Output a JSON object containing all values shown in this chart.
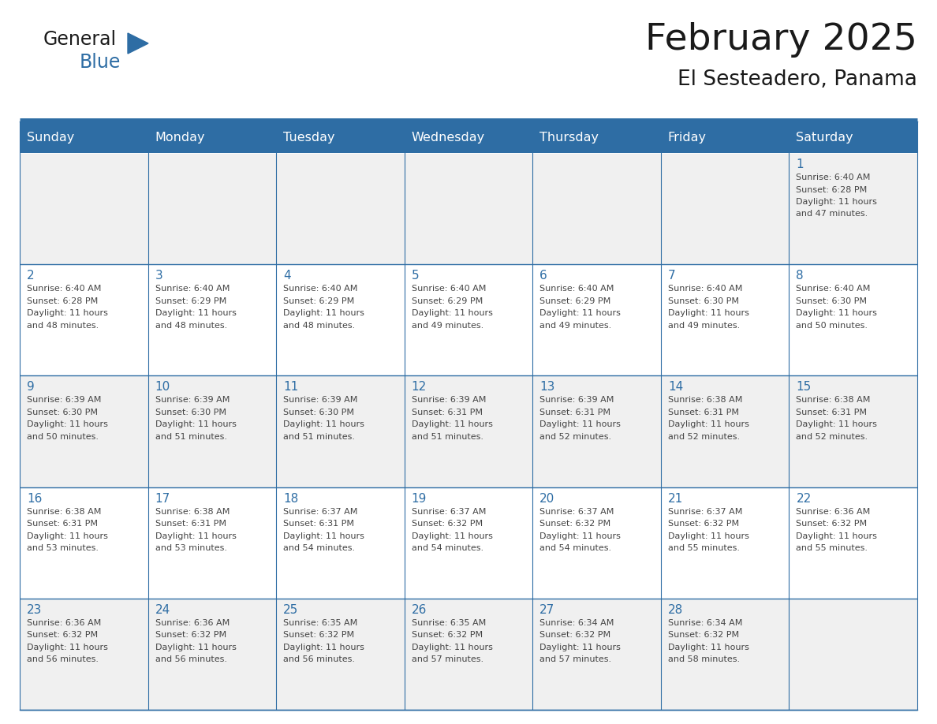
{
  "title": "February 2025",
  "subtitle": "El Sesteadero, Panama",
  "days_of_week": [
    "Sunday",
    "Monday",
    "Tuesday",
    "Wednesday",
    "Thursday",
    "Friday",
    "Saturday"
  ],
  "header_bg": "#2E6DA4",
  "header_text": "#FFFFFF",
  "cell_bg_light": "#F0F0F0",
  "cell_bg_white": "#FFFFFF",
  "border_color": "#2E6DA4",
  "day_number_color": "#2E6DA4",
  "text_color": "#444444",
  "title_color": "#1a1a1a",
  "calendar_data": [
    [
      null,
      null,
      null,
      null,
      null,
      null,
      {
        "day": 1,
        "sunrise": "6:40 AM",
        "sunset": "6:28 PM",
        "daylight": "11 hours and 47 minutes."
      }
    ],
    [
      {
        "day": 2,
        "sunrise": "6:40 AM",
        "sunset": "6:28 PM",
        "daylight": "11 hours and 48 minutes."
      },
      {
        "day": 3,
        "sunrise": "6:40 AM",
        "sunset": "6:29 PM",
        "daylight": "11 hours and 48 minutes."
      },
      {
        "day": 4,
        "sunrise": "6:40 AM",
        "sunset": "6:29 PM",
        "daylight": "11 hours and 48 minutes."
      },
      {
        "day": 5,
        "sunrise": "6:40 AM",
        "sunset": "6:29 PM",
        "daylight": "11 hours and 49 minutes."
      },
      {
        "day": 6,
        "sunrise": "6:40 AM",
        "sunset": "6:29 PM",
        "daylight": "11 hours and 49 minutes."
      },
      {
        "day": 7,
        "sunrise": "6:40 AM",
        "sunset": "6:30 PM",
        "daylight": "11 hours and 49 minutes."
      },
      {
        "day": 8,
        "sunrise": "6:40 AM",
        "sunset": "6:30 PM",
        "daylight": "11 hours and 50 minutes."
      }
    ],
    [
      {
        "day": 9,
        "sunrise": "6:39 AM",
        "sunset": "6:30 PM",
        "daylight": "11 hours and 50 minutes."
      },
      {
        "day": 10,
        "sunrise": "6:39 AM",
        "sunset": "6:30 PM",
        "daylight": "11 hours and 51 minutes."
      },
      {
        "day": 11,
        "sunrise": "6:39 AM",
        "sunset": "6:30 PM",
        "daylight": "11 hours and 51 minutes."
      },
      {
        "day": 12,
        "sunrise": "6:39 AM",
        "sunset": "6:31 PM",
        "daylight": "11 hours and 51 minutes."
      },
      {
        "day": 13,
        "sunrise": "6:39 AM",
        "sunset": "6:31 PM",
        "daylight": "11 hours and 52 minutes."
      },
      {
        "day": 14,
        "sunrise": "6:38 AM",
        "sunset": "6:31 PM",
        "daylight": "11 hours and 52 minutes."
      },
      {
        "day": 15,
        "sunrise": "6:38 AM",
        "sunset": "6:31 PM",
        "daylight": "11 hours and 52 minutes."
      }
    ],
    [
      {
        "day": 16,
        "sunrise": "6:38 AM",
        "sunset": "6:31 PM",
        "daylight": "11 hours and 53 minutes."
      },
      {
        "day": 17,
        "sunrise": "6:38 AM",
        "sunset": "6:31 PM",
        "daylight": "11 hours and 53 minutes."
      },
      {
        "day": 18,
        "sunrise": "6:37 AM",
        "sunset": "6:31 PM",
        "daylight": "11 hours and 54 minutes."
      },
      {
        "day": 19,
        "sunrise": "6:37 AM",
        "sunset": "6:32 PM",
        "daylight": "11 hours and 54 minutes."
      },
      {
        "day": 20,
        "sunrise": "6:37 AM",
        "sunset": "6:32 PM",
        "daylight": "11 hours and 54 minutes."
      },
      {
        "day": 21,
        "sunrise": "6:37 AM",
        "sunset": "6:32 PM",
        "daylight": "11 hours and 55 minutes."
      },
      {
        "day": 22,
        "sunrise": "6:36 AM",
        "sunset": "6:32 PM",
        "daylight": "11 hours and 55 minutes."
      }
    ],
    [
      {
        "day": 23,
        "sunrise": "6:36 AM",
        "sunset": "6:32 PM",
        "daylight": "11 hours and 56 minutes."
      },
      {
        "day": 24,
        "sunrise": "6:36 AM",
        "sunset": "6:32 PM",
        "daylight": "11 hours and 56 minutes."
      },
      {
        "day": 25,
        "sunrise": "6:35 AM",
        "sunset": "6:32 PM",
        "daylight": "11 hours and 56 minutes."
      },
      {
        "day": 26,
        "sunrise": "6:35 AM",
        "sunset": "6:32 PM",
        "daylight": "11 hours and 57 minutes."
      },
      {
        "day": 27,
        "sunrise": "6:34 AM",
        "sunset": "6:32 PM",
        "daylight": "11 hours and 57 minutes."
      },
      {
        "day": 28,
        "sunrise": "6:34 AM",
        "sunset": "6:32 PM",
        "daylight": "11 hours and 58 minutes."
      },
      null
    ]
  ],
  "fig_width": 11.88,
  "fig_height": 9.18,
  "dpi": 100
}
